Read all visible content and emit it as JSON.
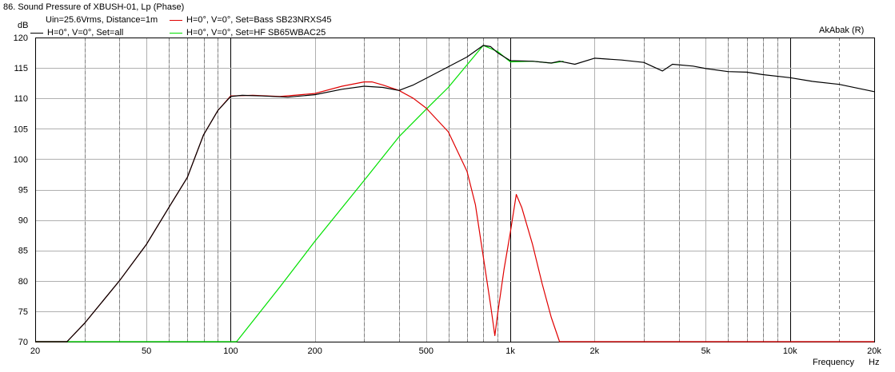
{
  "window": {
    "title": "86. Sound Pressure of XBUSH-01, Lp (Phase)"
  },
  "header": {
    "conditions": "Uin=25.6Vrms, Distance=1m",
    "brand": "AkAbak (R)"
  },
  "colors": {
    "all": "#000000",
    "bass": "#e00000",
    "hf": "#00e000",
    "grid": "#b0b0b0",
    "major_grid": "#000000"
  },
  "chart_data": {
    "type": "line",
    "title": "86. Sound Pressure of XBUSH-01, Lp (Phase)",
    "subtitle": "Uin=25.6Vrms, Distance=1m",
    "xlabel": "Frequency",
    "xunit": "Hz",
    "ylabel": "dB",
    "x_scale": "log",
    "xlim": [
      20,
      20000
    ],
    "ylim": [
      70,
      120
    ],
    "grid": true,
    "legend_position": "top-left",
    "x_ticks": [
      20,
      50,
      100,
      200,
      500,
      1000,
      2000,
      5000,
      10000,
      20000
    ],
    "x_tick_labels": [
      "20",
      "50",
      "100",
      "200",
      "500",
      "1k",
      "2k",
      "5k",
      "10k",
      "20k"
    ],
    "y_ticks": [
      70,
      75,
      80,
      85,
      90,
      95,
      100,
      105,
      110,
      115,
      120
    ],
    "y_tick_labels": [
      "70",
      "75",
      "80",
      "85",
      "90",
      "95",
      "100",
      "105",
      "110",
      "115",
      "120"
    ],
    "series": [
      {
        "name": "H=0°, V=0°, Set=all",
        "color": "#000000",
        "points": [
          [
            20,
            70
          ],
          [
            26,
            70
          ],
          [
            30,
            73
          ],
          [
            40,
            80
          ],
          [
            50,
            86
          ],
          [
            60,
            92
          ],
          [
            70,
            97
          ],
          [
            80,
            104
          ],
          [
            90,
            108
          ],
          [
            100,
            110.3
          ],
          [
            110,
            110.5
          ],
          [
            130,
            110.4
          ],
          [
            160,
            110.2
          ],
          [
            200,
            110.6
          ],
          [
            250,
            111.5
          ],
          [
            300,
            112.0
          ],
          [
            350,
            111.8
          ],
          [
            400,
            111.3
          ],
          [
            450,
            112.2
          ],
          [
            500,
            113.3
          ],
          [
            600,
            115.2
          ],
          [
            700,
            116.8
          ],
          [
            800,
            118.7
          ],
          [
            850,
            118.5
          ],
          [
            900,
            117.5
          ],
          [
            1000,
            116.2
          ],
          [
            1200,
            116.1
          ],
          [
            1400,
            115.8
          ],
          [
            1500,
            116.1
          ],
          [
            1700,
            115.6
          ],
          [
            2000,
            116.6
          ],
          [
            2500,
            116.3
          ],
          [
            3000,
            115.9
          ],
          [
            3500,
            114.5
          ],
          [
            3800,
            115.6
          ],
          [
            4500,
            115.3
          ],
          [
            5000,
            114.9
          ],
          [
            6000,
            114.4
          ],
          [
            7000,
            114.3
          ],
          [
            8000,
            113.9
          ],
          [
            10000,
            113.4
          ],
          [
            12000,
            112.8
          ],
          [
            15000,
            112.3
          ],
          [
            20000,
            111.1
          ]
        ]
      },
      {
        "name": "H=0°, V=0°, Set=Bass SB23NRXS45",
        "color": "#e00000",
        "points": [
          [
            20,
            70
          ],
          [
            26,
            70
          ],
          [
            30,
            73
          ],
          [
            40,
            80
          ],
          [
            50,
            86
          ],
          [
            60,
            92
          ],
          [
            70,
            97
          ],
          [
            80,
            104
          ],
          [
            90,
            108
          ],
          [
            100,
            110.4
          ],
          [
            120,
            110.5
          ],
          [
            150,
            110.3
          ],
          [
            200,
            110.8
          ],
          [
            250,
            112.0
          ],
          [
            300,
            112.7
          ],
          [
            320,
            112.7
          ],
          [
            350,
            112.2
          ],
          [
            400,
            111.3
          ],
          [
            450,
            110.0
          ],
          [
            500,
            108.4
          ],
          [
            600,
            104.5
          ],
          [
            700,
            98.0
          ],
          [
            750,
            92.5
          ],
          [
            800,
            84.0
          ],
          [
            850,
            76.0
          ],
          [
            880,
            71.0
          ],
          [
            900,
            74.5
          ],
          [
            950,
            82.0
          ],
          [
            1000,
            88.0
          ],
          [
            1050,
            94.2
          ],
          [
            1100,
            92.0
          ],
          [
            1200,
            86.0
          ],
          [
            1300,
            79.5
          ],
          [
            1400,
            74.0
          ],
          [
            1500,
            70.0
          ],
          [
            20000,
            70
          ]
        ]
      },
      {
        "name": "H=0°, V=0°, Set=HF SB65WBAC25",
        "color": "#00e000",
        "points": [
          [
            20,
            70
          ],
          [
            105,
            70
          ],
          [
            150,
            79.0
          ],
          [
            200,
            86.5
          ],
          [
            300,
            96.5
          ],
          [
            400,
            103.7
          ],
          [
            500,
            108.2
          ],
          [
            600,
            111.8
          ],
          [
            700,
            115.5
          ],
          [
            800,
            118.7
          ],
          [
            900,
            117.7
          ],
          [
            1000,
            116.0
          ],
          [
            1200,
            116.1
          ],
          [
            1400,
            115.8
          ],
          [
            1500,
            116.0
          ],
          [
            1550,
            116.1
          ]
        ]
      }
    ]
  }
}
